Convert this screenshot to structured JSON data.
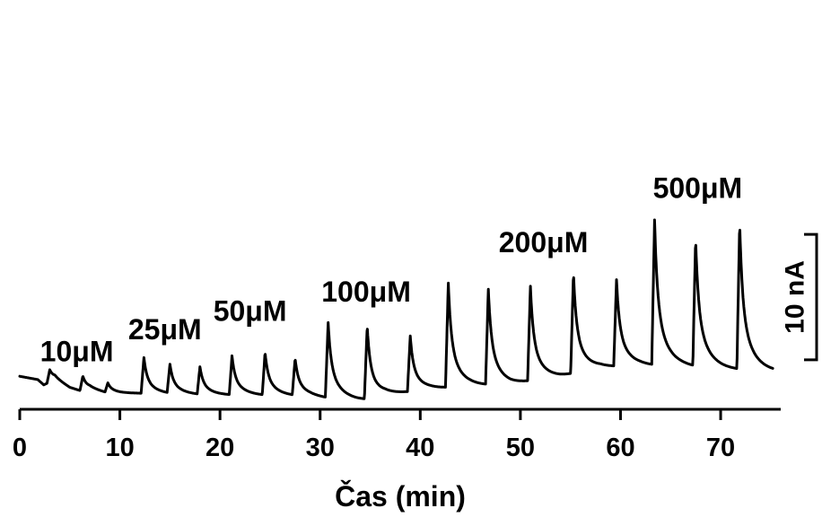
{
  "chart_data": {
    "type": "line",
    "title": "",
    "xlabel": "Čas (min)",
    "ylabel": "",
    "xlim": [
      0,
      76
    ],
    "ylim": [
      -5,
      57
    ],
    "x_ticks": [
      0,
      10,
      20,
      30,
      40,
      50,
      60,
      70
    ],
    "y_axis_visible": false,
    "grid": false,
    "legend": "none",
    "line_color": "#000000",
    "scale_bar": {
      "value": 10,
      "unit": "nA",
      "label": "10 nA"
    },
    "baseline": [
      [
        0,
        0
      ],
      [
        1.8,
        -0.5
      ],
      [
        2.4,
        -1.3
      ],
      [
        3.5,
        -0.5
      ],
      [
        5.0,
        -1.8
      ],
      [
        6.0,
        -2.2
      ],
      [
        7.0,
        -2.0
      ],
      [
        8.5,
        -2.5
      ],
      [
        10.0,
        -2.6
      ],
      [
        12.0,
        -2.6
      ],
      [
        13.5,
        -2.7
      ],
      [
        16.5,
        -2.8
      ],
      [
        19.5,
        -2.9
      ],
      [
        22.5,
        -2.9
      ],
      [
        26.0,
        -3.0
      ],
      [
        29.0,
        -3.1
      ],
      [
        31.0,
        -3.4
      ],
      [
        33.5,
        -3.6
      ],
      [
        35.0,
        -3.6
      ],
      [
        36.5,
        -2.9
      ],
      [
        39.0,
        -2.4
      ],
      [
        41.0,
        -2.0
      ],
      [
        45.0,
        -1.5
      ],
      [
        49.0,
        -1.3
      ],
      [
        51.0,
        -0.8
      ],
      [
        54.0,
        -0.1
      ],
      [
        56.0,
        0.6
      ],
      [
        58.0,
        1.3
      ],
      [
        62.0,
        1.6
      ],
      [
        66.0,
        1.5
      ],
      [
        70.0,
        1.1
      ],
      [
        73.5,
        0.8
      ],
      [
        75.2,
        0.7
      ]
    ],
    "peaks": [
      {
        "group": "10μM",
        "x": 3.0,
        "y": 1.0
      },
      {
        "group": "10μM",
        "x": 6.3,
        "y": 0.0
      },
      {
        "group": "10μM",
        "x": 8.8,
        "y": -1.1
      },
      {
        "group": "25μM",
        "x": 12.4,
        "y": 2.8
      },
      {
        "group": "25μM",
        "x": 15.0,
        "y": 1.6
      },
      {
        "group": "25μM",
        "x": 18.0,
        "y": 1.3
      },
      {
        "group": "50μM",
        "x": 21.2,
        "y": 3.0
      },
      {
        "group": "50μM",
        "x": 24.5,
        "y": 3.5
      },
      {
        "group": "50μM",
        "x": 27.5,
        "y": 2.5
      },
      {
        "group": "100μM",
        "x": 30.8,
        "y": 8.0
      },
      {
        "group": "100μM",
        "x": 34.7,
        "y": 7.5
      },
      {
        "group": "100μM",
        "x": 39.0,
        "y": 6.0
      },
      {
        "group": "200μM",
        "x": 42.8,
        "y": 14.0
      },
      {
        "group": "200μM",
        "x": 46.8,
        "y": 13.0
      },
      {
        "group": "200μM",
        "x": 51.0,
        "y": 13.5
      },
      {
        "group": "200μM",
        "x": 55.3,
        "y": 15.5
      },
      {
        "group": "200μM",
        "x": 59.6,
        "y": 14.5
      },
      {
        "group": "500μM",
        "x": 63.4,
        "y": 23.5
      },
      {
        "group": "500μM",
        "x": 67.5,
        "y": 20.5
      },
      {
        "group": "500μM",
        "x": 71.9,
        "y": 23.0
      }
    ],
    "annotations": [
      {
        "text": "10μM",
        "x": 5.7,
        "y": 2.3
      },
      {
        "text": "25μM",
        "x": 14.5,
        "y": 5.6
      },
      {
        "text": "50μM",
        "x": 23.0,
        "y": 8.4
      },
      {
        "text": "100μM",
        "x": 34.6,
        "y": 11.3
      },
      {
        "text": "200μM",
        "x": 52.3,
        "y": 18.8
      },
      {
        "text": "500μM",
        "x": 67.7,
        "y": 27.0
      }
    ]
  }
}
